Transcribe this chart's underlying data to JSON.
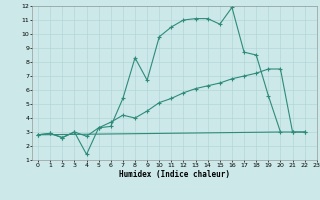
{
  "line1_x": [
    0,
    1,
    2,
    3,
    4,
    5,
    6,
    7,
    8,
    9,
    10,
    11,
    12,
    13,
    14,
    15,
    16,
    17,
    18,
    19,
    20,
    21,
    22
  ],
  "line1_y": [
    2.8,
    2.9,
    2.6,
    3.0,
    1.4,
    3.3,
    3.4,
    5.4,
    8.3,
    6.7,
    9.8,
    10.5,
    11.0,
    11.1,
    11.1,
    10.7,
    11.9,
    8.7,
    8.5,
    5.6,
    3.0,
    3.0,
    3.0
  ],
  "line2_x": [
    0,
    1,
    2,
    3,
    4,
    5,
    6,
    7,
    8,
    9,
    10,
    11,
    12,
    13,
    14,
    15,
    16,
    17,
    18,
    19,
    20,
    21,
    22
  ],
  "line2_y": [
    2.8,
    2.9,
    2.6,
    3.0,
    2.7,
    3.3,
    3.7,
    4.2,
    4.0,
    4.5,
    5.1,
    5.4,
    5.8,
    6.1,
    6.3,
    6.5,
    6.8,
    7.0,
    7.2,
    7.5,
    7.5,
    3.0,
    3.0
  ],
  "line3_x": [
    0,
    20
  ],
  "line3_y": [
    2.8,
    3.0
  ],
  "color": "#2e8b7a",
  "bg_color": "#cce8e8",
  "grid_color": "#aed4d4",
  "xlabel": "Humidex (Indice chaleur)",
  "ylim": [
    1,
    12
  ],
  "xlim": [
    -0.5,
    23
  ],
  "yticks": [
    1,
    2,
    3,
    4,
    5,
    6,
    7,
    8,
    9,
    10,
    11,
    12
  ],
  "xticks": [
    0,
    1,
    2,
    3,
    4,
    5,
    6,
    7,
    8,
    9,
    10,
    11,
    12,
    13,
    14,
    15,
    16,
    17,
    18,
    19,
    20,
    21,
    22,
    23
  ]
}
